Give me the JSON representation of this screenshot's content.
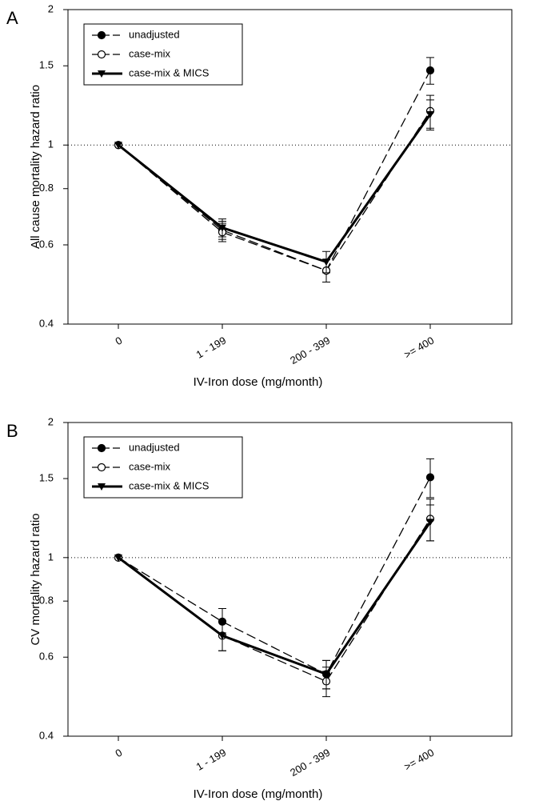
{
  "chart_data": [
    {
      "type": "line",
      "panel": "A",
      "y_label": "All cause mortality hazard ratio",
      "x_label": "IV-Iron dose (mg/month)",
      "categories": [
        "0",
        "1 - 199",
        "200 - 399",
        ">= 400"
      ],
      "ylim": [
        0.4,
        2
      ],
      "yticks": [
        0.4,
        0.6,
        0.8,
        1,
        1.5,
        2
      ],
      "log_y": true,
      "hline": 1,
      "legend": "top-left",
      "series": [
        {
          "name": "unadjusted",
          "color": "#000000",
          "marker": "filled-circle",
          "dash": true,
          "width": 1.3,
          "values": [
            1,
            0.647,
            0.526,
            1.465
          ],
          "errors": [
            0,
            0.03,
            0.03,
            0.1
          ]
        },
        {
          "name": "case-mix",
          "color": "#000000",
          "marker": "open-circle",
          "dash": true,
          "width": 1.3,
          "values": [
            1,
            0.64,
            0.526,
            1.19
          ],
          "errors": [
            0,
            0.03,
            0.03,
            0.1
          ]
        },
        {
          "name": "case-mix & MICS",
          "color": "#000000",
          "marker": "triangle",
          "dash": false,
          "width": 3,
          "values": [
            1,
            0.655,
            0.55,
            1.17
          ],
          "errors": [
            0,
            0.03,
            0.03,
            0.09
          ]
        }
      ]
    },
    {
      "type": "line",
      "panel": "B",
      "y_label": "CV mortality hazard ratio",
      "x_label": "IV-Iron dose (mg/month)",
      "categories": [
        "0",
        "1 - 199",
        "200 - 399",
        ">= 400"
      ],
      "ylim": [
        0.4,
        2
      ],
      "yticks": [
        0.4,
        0.6,
        0.8,
        1,
        1.5,
        2
      ],
      "log_y": true,
      "hline": 1,
      "legend": "top-left",
      "series": [
        {
          "name": "unadjusted",
          "color": "#000000",
          "marker": "filled-circle",
          "dash": true,
          "width": 1.3,
          "values": [
            1,
            0.72,
            0.55,
            1.51
          ],
          "errors": [
            0,
            0.05,
            0.04,
            0.15
          ]
        },
        {
          "name": "case-mix",
          "color": "#000000",
          "marker": "open-circle",
          "dash": true,
          "width": 1.3,
          "values": [
            1,
            0.67,
            0.53,
            1.22
          ],
          "errors": [
            0,
            0.05,
            0.04,
            0.13
          ]
        },
        {
          "name": "case-mix & MICS",
          "color": "#000000",
          "marker": "triangle",
          "dash": false,
          "width": 3,
          "values": [
            1,
            0.67,
            0.55,
            1.2
          ],
          "errors": [
            0,
            0.05,
            0.04,
            0.11
          ]
        }
      ]
    }
  ]
}
